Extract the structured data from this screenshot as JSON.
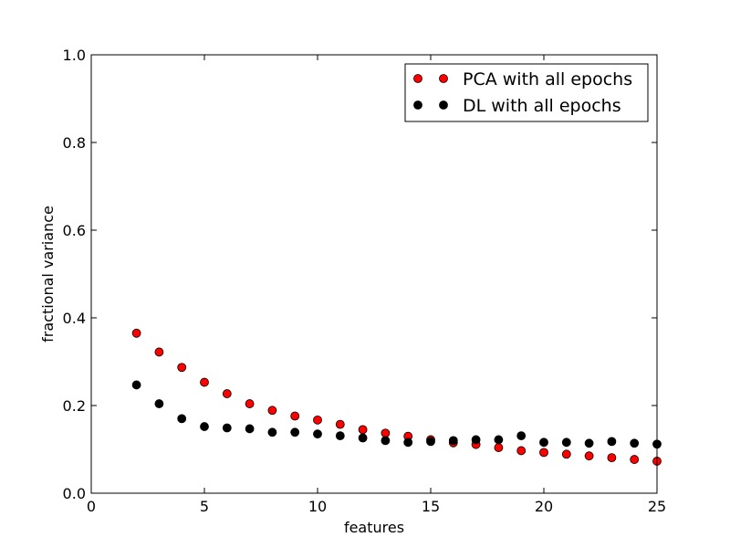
{
  "chart_data": {
    "type": "scatter",
    "title": "",
    "xlabel": "features",
    "ylabel": "fractional variance",
    "xlim": [
      0,
      25
    ],
    "ylim": [
      0.0,
      1.0
    ],
    "xticks": [
      0,
      5,
      10,
      15,
      20,
      25
    ],
    "xtick_labels": [
      "0",
      "5",
      "10",
      "15",
      "20",
      "25"
    ],
    "yticks": [
      0.0,
      0.2,
      0.4,
      0.6,
      0.8,
      1.0
    ],
    "ytick_labels": [
      "0.0",
      "0.2",
      "0.4",
      "0.6",
      "0.8",
      "1.0"
    ],
    "grid": false,
    "legend_position": "top-right",
    "x": [
      2,
      3,
      4,
      5,
      6,
      7,
      8,
      9,
      10,
      11,
      12,
      13,
      14,
      15,
      16,
      17,
      18,
      19,
      20,
      21,
      22,
      23,
      24,
      25
    ],
    "series": [
      {
        "name": "PCA with all epochs",
        "color": "#ff0000",
        "values": [
          0.365,
          0.322,
          0.287,
          0.253,
          0.227,
          0.204,
          0.189,
          0.176,
          0.167,
          0.157,
          0.145,
          0.137,
          0.13,
          0.122,
          0.115,
          0.111,
          0.104,
          0.097,
          0.093,
          0.089,
          0.085,
          0.081,
          0.077,
          0.073
        ]
      },
      {
        "name": "DL with all epochs",
        "color": "#000000",
        "values": [
          0.247,
          0.204,
          0.17,
          0.152,
          0.149,
          0.147,
          0.139,
          0.139,
          0.135,
          0.131,
          0.126,
          0.12,
          0.116,
          0.118,
          0.12,
          0.122,
          0.122,
          0.131,
          0.116,
          0.116,
          0.114,
          0.118,
          0.114,
          0.112
        ]
      }
    ]
  }
}
